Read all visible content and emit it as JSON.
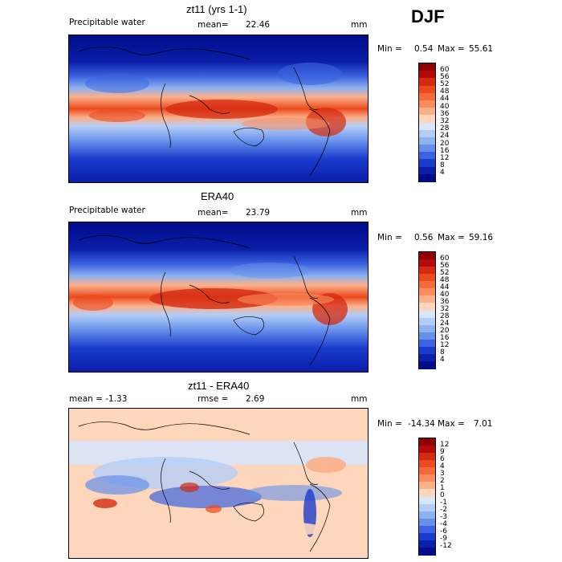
{
  "header": {
    "season": "DJF"
  },
  "panels": [
    {
      "title": "zt11 (yrs 1-1)",
      "left_label": "Precipitable water",
      "stat_label": "mean=",
      "stat_value": "22.46",
      "units": "mm",
      "range_text": {
        "min_label": "Min =",
        "min": "0.54",
        "max_label": "Max =",
        "max": "55.61"
      },
      "field": "abs",
      "colorbar": {
        "levels": [
          "60",
          "56",
          "52",
          "48",
          "44",
          "40",
          "36",
          "32",
          "28",
          "24",
          "20",
          "16",
          "12",
          "8",
          "4"
        ],
        "colors": [
          "#8c0000",
          "#b40a0a",
          "#d42a10",
          "#ea4a1c",
          "#f46a3a",
          "#fa8c5e",
          "#fcb08a",
          "#fdd6bc",
          "#d8e6fa",
          "#b4cdf6",
          "#8fb2f0",
          "#6690ea",
          "#3c64e0",
          "#1a3ccc",
          "#0a1ea8",
          "#000c8a"
        ]
      }
    },
    {
      "title": "ERA40",
      "left_label": "Precipitable water",
      "stat_label": "mean=",
      "stat_value": "23.79",
      "units": "mm",
      "range_text": {
        "min_label": "Min =",
        "min": "0.56",
        "max_label": "Max =",
        "max": "59.16"
      },
      "field": "abs",
      "colorbar": {
        "levels": [
          "60",
          "56",
          "52",
          "48",
          "44",
          "40",
          "36",
          "32",
          "28",
          "24",
          "20",
          "16",
          "12",
          "8",
          "4"
        ],
        "colors": [
          "#8c0000",
          "#b40a0a",
          "#d42a10",
          "#ea4a1c",
          "#f46a3a",
          "#fa8c5e",
          "#fcb08a",
          "#fdd6bc",
          "#d8e6fa",
          "#b4cdf6",
          "#8fb2f0",
          "#6690ea",
          "#3c64e0",
          "#1a3ccc",
          "#0a1ea8",
          "#000c8a"
        ]
      }
    },
    {
      "title": "zt11 - ERA40",
      "left_label": "mean =   -1.33",
      "stat_label": "rmse =",
      "stat_value": "2.69",
      "units": "mm",
      "range_text": {
        "min_label": "Min =",
        "min": "-14.34",
        "max_label": "Max =",
        "max": "7.01"
      },
      "field": "diff",
      "colorbar": {
        "levels": [
          "12",
          "9",
          "6",
          "4",
          "3",
          "2",
          "1",
          "0",
          "-1",
          "-2",
          "-3",
          "-4",
          "-6",
          "-9",
          "-12"
        ],
        "colors": [
          "#8c0000",
          "#b40a0a",
          "#d42a10",
          "#ea4a1c",
          "#f46a3a",
          "#fa8c5e",
          "#fcb08a",
          "#fdd6bc",
          "#d8e6fa",
          "#b4cdf6",
          "#8fb2f0",
          "#6690ea",
          "#3c64e0",
          "#1a3ccc",
          "#0a1ea8",
          "#000c8a"
        ]
      }
    }
  ]
}
